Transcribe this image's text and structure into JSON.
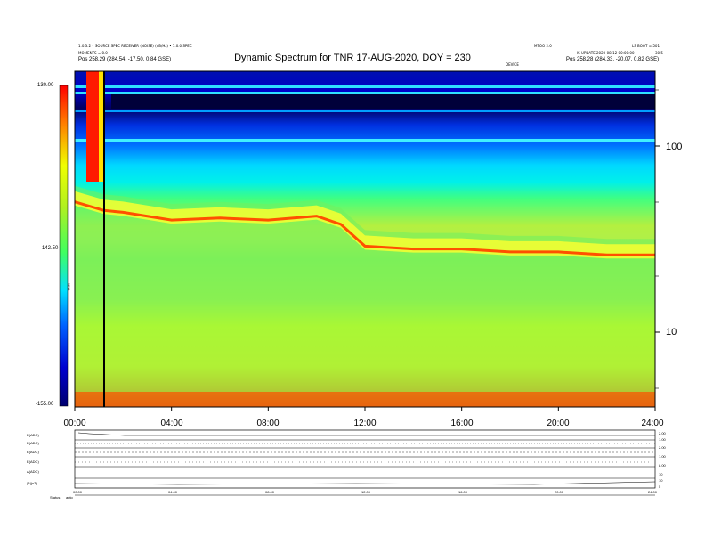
{
  "header": {
    "title": "Dynamic Spectrum for TNR 17-AUG-2020, DOY = 230",
    "left_line1": "1.0.3.2 • SOURCE SPEC RECEIVER (NOISE) (dB/Hz) • 1.0.0 SPEC",
    "left_line2": "MOMENTS = 0.0",
    "left_pos": "Pos    258.29 (284.54, -17.50, 0.84 GSE)",
    "right_line0a": "MTOO 2.0",
    "right_line0b": "LS BOOT = 501",
    "right_line1": "IS UPDATE  2020-08-12  00:00:00",
    "right_line1b": "30.5",
    "right_pos": "Pos    258.28 (284.33, -20.07, 0.82 GSE)",
    "center_small": "DEVICE"
  },
  "colorbar": {
    "max_label": "-130.00",
    "mid_label": "-142.50",
    "min_label": "-155.00",
    "unit_label": "TNR",
    "colors": [
      "#00006e",
      "#0000c8",
      "#0044ff",
      "#00aaff",
      "#00f0f0",
      "#40ff60",
      "#9cf040",
      "#f0ff00",
      "#ffd000",
      "#ff6000",
      "#ff0000"
    ]
  },
  "chart_data": {
    "type": "heatmap",
    "title": "Dynamic Spectrum for TNR 17-AUG-2020, DOY = 230",
    "xlabel": "",
    "ylabel": "",
    "x_ticks": [
      "00:00",
      "04:00",
      "08:00",
      "12:00",
      "16:00",
      "20:00",
      "24:00"
    ],
    "x_range_hours": [
      0,
      24
    ],
    "y_scale": "log",
    "y_range": [
      4,
      250
    ],
    "y_ticks": [
      "100",
      "10"
    ],
    "color_range": [
      -155.0,
      -130.0
    ],
    "marker_time_hours": 1.2,
    "band_boundary_vs_time": {
      "hours": [
        0,
        1.2,
        2,
        4,
        6,
        8,
        10,
        11,
        12,
        14,
        16,
        18,
        20,
        22,
        24
      ],
      "freq": [
        50,
        45,
        44,
        40,
        41,
        40,
        42,
        38,
        29,
        28,
        28,
        27,
        27,
        26,
        26
      ]
    }
  },
  "bottom_panels": {
    "labels": [
      "E(ADC)",
      "E(ADC)",
      "E(ADC)",
      "E(ADC)",
      "A(ADC)",
      "|B|(nT)"
    ],
    "right_ticks": [
      "2.00",
      "1.00",
      "2.00",
      "1.00",
      "8.00",
      "10",
      "10",
      "5"
    ],
    "x_ticks": [
      "00:00",
      "04:00",
      "08:00",
      "12:00",
      "16:00",
      "20:00",
      "24:00"
    ],
    "footer_left": "Status",
    "footer_flag": "auto"
  }
}
